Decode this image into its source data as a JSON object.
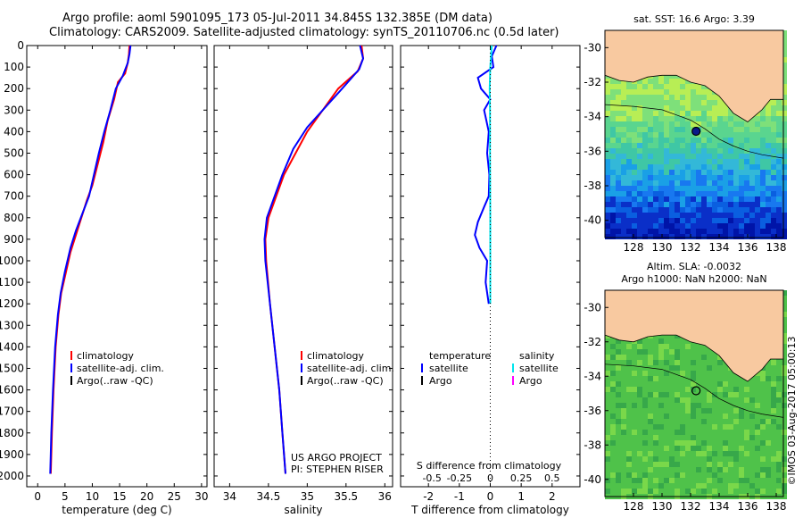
{
  "header": {
    "line1": "Argo profile: aoml 5901095_173 05-Jul-2011 34.845S 132.385E (DM data)",
    "line2": "Climatology: CARS2009. Satellite-adjusted climatology: synTS_20110706.nc (0.5d later)"
  },
  "colors": {
    "climatology": "#ff0000",
    "satellite": "#0000ff",
    "argo": "#000000",
    "salinity_satellite": "#00e5ee",
    "salinity_argo": "#ff00ff",
    "land": "#f8c9a0"
  },
  "chart_data": [
    {
      "type": "line",
      "xlabel": "temperature (deg C)",
      "ylabel": "",
      "xlim": [
        -2,
        31
      ],
      "ylim": [
        2050,
        0
      ],
      "xticks": [
        0,
        5,
        10,
        15,
        20,
        25,
        30
      ],
      "yticks": [
        0,
        100,
        200,
        300,
        400,
        500,
        600,
        700,
        800,
        900,
        1000,
        1100,
        1200,
        1300,
        1400,
        1500,
        1600,
        1700,
        1800,
        1900,
        2000
      ],
      "legend": [
        "climatology",
        "satellite-adj. clim.",
        "Argo(..raw -QC)"
      ],
      "legend_position": "bottom-center",
      "series": [
        {
          "name": "climatology",
          "color": "#ff0000",
          "points": [
            [
              16.8,
              0
            ],
            [
              16.7,
              40
            ],
            [
              16.5,
              80
            ],
            [
              16.0,
              130
            ],
            [
              14.7,
              170
            ],
            [
              14.0,
              250
            ],
            [
              12.8,
              350
            ],
            [
              12.0,
              450
            ],
            [
              11.0,
              550
            ],
            [
              10.0,
              650
            ],
            [
              9.0,
              720
            ],
            [
              8.0,
              800
            ],
            [
              7.0,
              880
            ],
            [
              6.0,
              960
            ],
            [
              5.2,
              1050
            ],
            [
              4.3,
              1150
            ],
            [
              3.8,
              1250
            ],
            [
              3.3,
              1400
            ],
            [
              2.9,
              1600
            ],
            [
              2.6,
              1800
            ],
            [
              2.4,
              1990
            ]
          ]
        },
        {
          "name": "satellite-adj. clim.",
          "color": "#0000ff",
          "points": [
            [
              17.0,
              0
            ],
            [
              16.8,
              40
            ],
            [
              16.5,
              80
            ],
            [
              15.6,
              140
            ],
            [
              14.3,
              200
            ],
            [
              13.3,
              300
            ],
            [
              12.2,
              400
            ],
            [
              11.2,
              500
            ],
            [
              10.3,
              600
            ],
            [
              9.4,
              700
            ],
            [
              8.2,
              780
            ],
            [
              7.0,
              860
            ],
            [
              6.0,
              940
            ],
            [
              5.0,
              1050
            ],
            [
              4.2,
              1150
            ],
            [
              3.7,
              1250
            ],
            [
              3.2,
              1400
            ],
            [
              2.8,
              1600
            ],
            [
              2.5,
              1800
            ],
            [
              2.3,
              1990
            ]
          ]
        }
      ]
    },
    {
      "type": "line",
      "xlabel": "salinity",
      "ylabel": "",
      "xlim": [
        33.8,
        36.1
      ],
      "ylim": [
        2050,
        0
      ],
      "xticks": [
        34,
        34.5,
        35,
        35.5,
        36
      ],
      "xtick_labels": [
        "34",
        "34.5",
        "35",
        "35.5",
        "36"
      ],
      "legend": [
        "climatology",
        "satellite-adj. clim.",
        "Argo(..raw -QC)"
      ],
      "legend_position": "bottom-right",
      "series": [
        {
          "name": "climatology",
          "color": "#ff0000",
          "points": [
            [
              35.7,
              0
            ],
            [
              35.72,
              60
            ],
            [
              35.65,
              120
            ],
            [
              35.4,
              200
            ],
            [
              35.2,
              300
            ],
            [
              35.0,
              400
            ],
            [
              34.85,
              500
            ],
            [
              34.7,
              600
            ],
            [
              34.6,
              700
            ],
            [
              34.5,
              800
            ],
            [
              34.46,
              900
            ],
            [
              34.47,
              1000
            ],
            [
              34.52,
              1200
            ],
            [
              34.58,
              1400
            ],
            [
              34.64,
              1600
            ],
            [
              34.68,
              1800
            ],
            [
              34.72,
              1990
            ]
          ]
        },
        {
          "name": "satellite-adj. clim.",
          "color": "#0000ff",
          "points": [
            [
              35.68,
              0
            ],
            [
              35.72,
              60
            ],
            [
              35.67,
              110
            ],
            [
              35.5,
              180
            ],
            [
              35.25,
              280
            ],
            [
              35.0,
              380
            ],
            [
              34.82,
              480
            ],
            [
              34.68,
              600
            ],
            [
              34.58,
              700
            ],
            [
              34.48,
              800
            ],
            [
              34.45,
              900
            ],
            [
              34.46,
              1000
            ],
            [
              34.52,
              1200
            ],
            [
              34.58,
              1400
            ],
            [
              34.64,
              1600
            ],
            [
              34.68,
              1800
            ],
            [
              34.72,
              1990
            ]
          ]
        }
      ],
      "annotations": [
        "US ARGO PROJECT",
        "PI: STEPHEN RISER"
      ]
    },
    {
      "type": "line",
      "xlabel": "T difference from climatology",
      "x2label": "S difference from climatology",
      "xlim": [
        -2.9,
        2.9
      ],
      "ylim": [
        2050,
        0
      ],
      "xticks": [
        -2,
        -1,
        0,
        1,
        2
      ],
      "x2ticks": [
        "-0.5",
        "-0.25",
        "0",
        "0.25",
        "0.5"
      ],
      "legend_temperature": [
        "temperature",
        "satellite",
        "Argo"
      ],
      "legend_salinity": [
        "salinity",
        "satellite",
        "Argo"
      ],
      "series": [
        {
          "name": "temperature satellite",
          "color": "#0000ff",
          "points": [
            [
              0.2,
              0
            ],
            [
              0.05,
              50
            ],
            [
              0.1,
              100
            ],
            [
              -0.4,
              150
            ],
            [
              -0.3,
              200
            ],
            [
              0.0,
              250
            ],
            [
              -0.2,
              300
            ],
            [
              -0.05,
              400
            ],
            [
              -0.1,
              500
            ],
            [
              -0.03,
              600
            ],
            [
              -0.05,
              700
            ],
            [
              -0.2,
              750
            ],
            [
              -0.4,
              820
            ],
            [
              -0.5,
              880
            ],
            [
              -0.35,
              940
            ],
            [
              -0.1,
              1000
            ],
            [
              -0.15,
              1100
            ],
            [
              -0.05,
              1200
            ]
          ]
        },
        {
          "name": "salinity satellite",
          "color": "#00e5ee",
          "points": [
            [
              0.05,
              0
            ],
            [
              0.0,
              100
            ],
            [
              -0.02,
              200
            ],
            [
              -0.01,
              300
            ],
            [
              -0.01,
              500
            ],
            [
              0.0,
              800
            ],
            [
              0.0,
              1000
            ],
            [
              0.0,
              1200
            ]
          ]
        }
      ]
    },
    {
      "type": "heatmap",
      "title": "sat. SST: 16.6 Argo: 3.39",
      "xlim": [
        126,
        138.5
      ],
      "ylim": [
        -41,
        -29
      ],
      "xticks": [
        128,
        130,
        132,
        134,
        136,
        138
      ],
      "yticks": [
        -30,
        -32,
        -34,
        -36,
        -38,
        -40
      ],
      "marker": {
        "lon": 132.385,
        "lat": -34.845
      }
    },
    {
      "type": "heatmap",
      "title1": "Altim. SLA: -0.0032",
      "title2": "Argo h1000: NaN h2000: NaN",
      "xlim": [
        126,
        138.5
      ],
      "ylim": [
        -41,
        -29
      ],
      "xticks": [
        128,
        130,
        132,
        134,
        136,
        138
      ],
      "yticks": [
        -30,
        -32,
        -34,
        -36,
        -38,
        -40
      ],
      "marker": {
        "lon": 132.385,
        "lat": -34.845
      }
    }
  ],
  "legend_main": [
    "climatology",
    "satellite-adj. clim.",
    "Argo(..raw -QC)"
  ],
  "legend_diff": {
    "temperature": "temperature",
    "salinity": "salinity",
    "t_satellite": "satellite",
    "t_argo": "Argo",
    "s_satellite": "satellite",
    "s_argo": "Argo"
  },
  "footer": {
    "credit": "©IMOS 03-Aug-2017 05:00:13",
    "project": "US ARGO PROJECT",
    "pi": "PI: STEPHEN RISER"
  }
}
